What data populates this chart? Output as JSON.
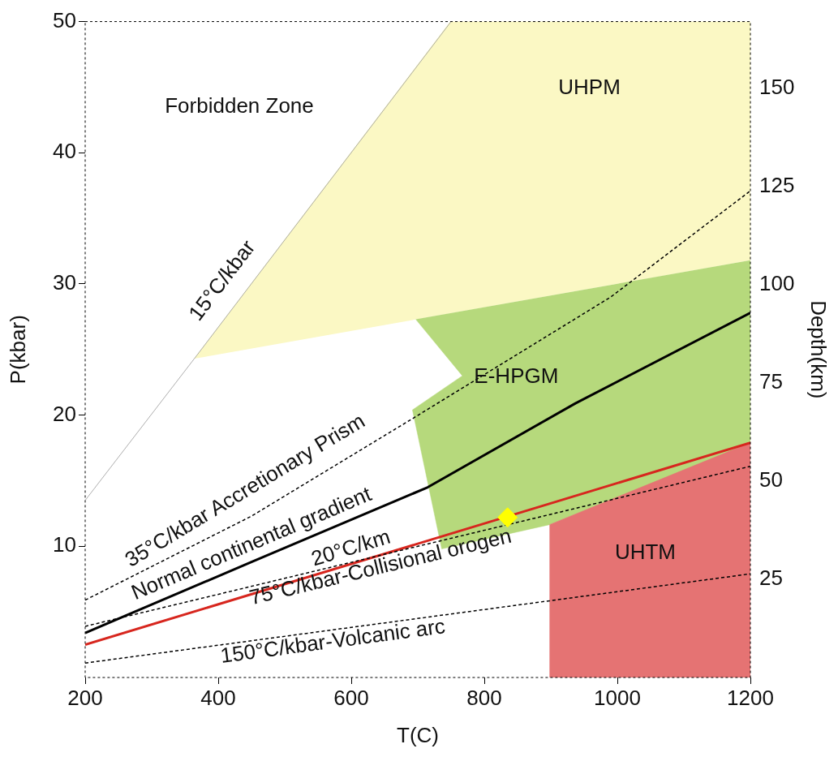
{
  "chart_data": {
    "type": "line",
    "xlabel": "T(C)",
    "ylabel": "P(kbar)",
    "y2label": "Depth(km)",
    "xlim": [
      200,
      1200
    ],
    "xticks": [
      200,
      400,
      600,
      800,
      1000,
      1200
    ],
    "ylim": [
      0,
      50
    ],
    "yticks": [
      10,
      20,
      30,
      40,
      50
    ],
    "y2lim": [
      0,
      167
    ],
    "y2ticks": [
      25,
      50,
      75,
      100,
      125,
      150
    ],
    "grid": false,
    "legend": false,
    "annotations": [
      "Forbidden Zone"
    ],
    "series": [
      {
        "type": "area",
        "name": "UHPM",
        "color": "#fbf8c4",
        "x": [
          364,
          749,
          1200,
          1200
        ],
        "values": [
          24.3,
          50,
          50,
          31.8
        ]
      },
      {
        "type": "area",
        "name": "E-HPGM",
        "color": "#b6d97c",
        "x": [
          697,
          767,
          692,
          736,
          898,
          1160,
          1200,
          1200
        ],
        "values": [
          27.3,
          23.0,
          20.4,
          9.8,
          11.65,
          17.0,
          17.9,
          31.8
        ]
      },
      {
        "type": "area",
        "name": "UHTM",
        "color": "#e57373",
        "x": [
          898,
          1200,
          1200,
          898
        ],
        "values": [
          11.65,
          17.9,
          0,
          0
        ]
      },
      {
        "name": "15°C/kbar",
        "color": "#999999",
        "line_style": "solid",
        "x": [
          200,
          364,
          750
        ],
        "values": [
          13.5,
          24.3,
          50
        ]
      },
      {
        "name": "35°C/kbar Accretionary Prism",
        "color": "#000000",
        "line_style": "dashed",
        "x": [
          200,
          450,
          691,
          990,
          1200
        ],
        "values": [
          5.9,
          12.3,
          19.7,
          29.0,
          37.1
        ]
      },
      {
        "name": "Normal continental gradient",
        "color": "#000000",
        "line_style": "solid",
        "x": [
          200,
          450,
          715,
          937,
          1200
        ],
        "values": [
          3.4,
          8.8,
          14.5,
          20.9,
          27.8
        ]
      },
      {
        "name": "20°C/km",
        "color": "#d7261e",
        "line_style": "solid",
        "x": [
          200,
          1200
        ],
        "values": [
          2.5,
          17.9
        ]
      },
      {
        "name": "75°C/kbar-Collisional orogen",
        "color": "#000000",
        "line_style": "dashed",
        "x": [
          200,
          1200
        ],
        "values": [
          3.9,
          16.1
        ]
      },
      {
        "name": "150°C/kbar-Volcanic arc",
        "color": "#000000",
        "line_style": "dashed",
        "x": [
          200,
          1200
        ],
        "values": [
          1.1,
          7.9
        ]
      },
      {
        "type": "scatter",
        "color": "#ffff00",
        "marker": "diamond",
        "x": [
          835
        ],
        "values": [
          12.2
        ]
      }
    ]
  }
}
